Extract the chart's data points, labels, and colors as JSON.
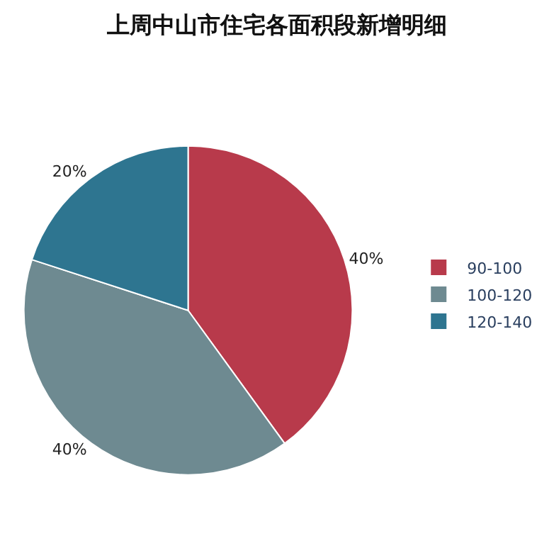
{
  "chart_data": {
    "type": "pie",
    "title": "上周中山市住宅各面积段新增明细",
    "categories": [
      "90-100",
      "100-120",
      "120-140"
    ],
    "values": [
      40,
      40,
      20
    ],
    "colors": [
      "#b83a4b",
      "#6e8a91",
      "#2e7590"
    ],
    "value_labels": [
      "40%",
      "40%",
      "20%"
    ],
    "legend": "right"
  }
}
